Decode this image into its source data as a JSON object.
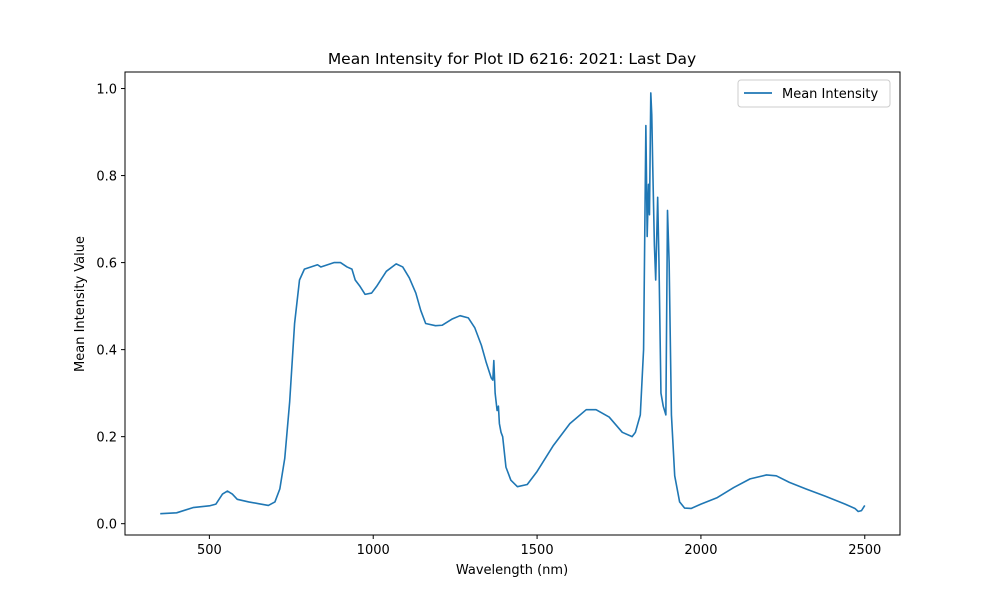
{
  "chart_data": {
    "type": "line",
    "title": "Mean Intensity for Plot ID 6216: 2021: Last Day",
    "x_label": "Wavelength (nm)",
    "y_label": "Mean Intensity Value",
    "x": [
      350,
      400,
      450,
      500,
      520,
      540,
      555,
      570,
      585,
      620,
      650,
      680,
      700,
      715,
      730,
      745,
      760,
      775,
      790,
      830,
      840,
      880,
      900,
      920,
      935,
      945,
      960,
      975,
      995,
      1010,
      1040,
      1070,
      1090,
      1110,
      1130,
      1145,
      1160,
      1190,
      1210,
      1240,
      1265,
      1290,
      1310,
      1330,
      1345,
      1360,
      1365,
      1368,
      1372,
      1378,
      1382,
      1385,
      1390,
      1395,
      1405,
      1420,
      1440,
      1470,
      1500,
      1550,
      1600,
      1650,
      1680,
      1720,
      1760,
      1790,
      1800,
      1815,
      1825,
      1832,
      1836,
      1840,
      1843,
      1847,
      1850,
      1853,
      1858,
      1862,
      1868,
      1872,
      1878,
      1885,
      1893,
      1898,
      1903,
      1910,
      1920,
      1935,
      1950,
      1970,
      2000,
      2050,
      2100,
      2150,
      2200,
      2230,
      2270,
      2320,
      2380,
      2440,
      2470,
      2480,
      2490,
      2500
    ],
    "series": [
      {
        "name": "Mean Intensity",
        "color": "#1f77b4",
        "values": [
          0.023,
          0.025,
          0.037,
          0.041,
          0.045,
          0.068,
          0.075,
          0.068,
          0.056,
          0.05,
          0.046,
          0.042,
          0.05,
          0.08,
          0.15,
          0.28,
          0.46,
          0.56,
          0.585,
          0.595,
          0.59,
          0.6,
          0.6,
          0.59,
          0.585,
          0.56,
          0.545,
          0.527,
          0.53,
          0.545,
          0.58,
          0.597,
          0.59,
          0.565,
          0.53,
          0.49,
          0.46,
          0.455,
          0.456,
          0.47,
          0.478,
          0.473,
          0.45,
          0.41,
          0.37,
          0.335,
          0.33,
          0.375,
          0.3,
          0.26,
          0.27,
          0.23,
          0.21,
          0.2,
          0.13,
          0.1,
          0.085,
          0.09,
          0.12,
          0.18,
          0.23,
          0.262,
          0.262,
          0.245,
          0.21,
          0.2,
          0.21,
          0.25,
          0.4,
          0.915,
          0.66,
          0.78,
          0.71,
          0.99,
          0.94,
          0.82,
          0.64,
          0.56,
          0.75,
          0.6,
          0.3,
          0.27,
          0.25,
          0.72,
          0.6,
          0.25,
          0.11,
          0.05,
          0.036,
          0.035,
          0.045,
          0.06,
          0.083,
          0.103,
          0.112,
          0.11,
          0.095,
          0.08,
          0.063,
          0.045,
          0.035,
          0.028,
          0.03,
          0.042
        ]
      }
    ],
    "xlim": [
      242.5,
      2607.5
    ],
    "ylim": [
      -0.026,
      1.038
    ],
    "xticks": [
      500,
      1000,
      1500,
      2000,
      2500
    ],
    "yticks": [
      {
        "value": 0,
        "label": "0.0"
      },
      0.2,
      0.4,
      0.6,
      0.8,
      {
        "value": 1,
        "label": "1.0"
      }
    ],
    "legend": "upper right",
    "grid": false
  }
}
